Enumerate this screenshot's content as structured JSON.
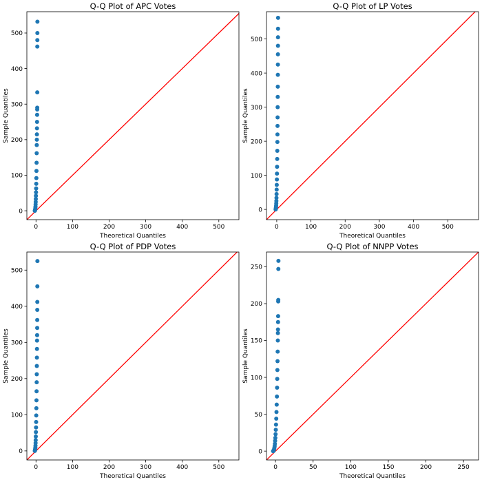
{
  "chart_data": [
    {
      "type": "scatter",
      "title": "Q-Q Plot of APC Votes",
      "xlabel": "Theoretical Quantiles",
      "ylabel": "Sample Quantiles",
      "xlim": [
        -25,
        555
      ],
      "ylim": [
        -25,
        560
      ],
      "xticks": [
        0,
        100,
        200,
        300,
        400,
        500
      ],
      "yticks": [
        0,
        100,
        200,
        300,
        400,
        500
      ],
      "reference_line": "y = x",
      "marker_color": "#1f77b4",
      "line_color": "#ff0000",
      "series": [
        {
          "points": [
            [
              -3.2,
              0
            ],
            [
              -2.9,
              1
            ],
            [
              -2.6,
              2
            ],
            [
              -2.3,
              3
            ],
            [
              -2.0,
              5
            ],
            [
              -1.7,
              8
            ],
            [
              -1.4,
              12
            ],
            [
              -1.1,
              18
            ],
            [
              -0.8,
              25
            ],
            [
              -0.5,
              33
            ],
            [
              -0.2,
              42
            ],
            [
              0.1,
              52
            ],
            [
              0.4,
              63
            ],
            [
              0.7,
              76
            ],
            [
              1.0,
              92
            ],
            [
              1.3,
              112
            ],
            [
              1.6,
              135
            ],
            [
              1.9,
              162
            ],
            [
              2.1,
              185
            ],
            [
              2.3,
              200
            ],
            [
              2.5,
              215
            ],
            [
              2.7,
              232
            ],
            [
              2.9,
              250
            ],
            [
              3.1,
              270
            ],
            [
              3.3,
              285
            ],
            [
              3.4,
              290
            ],
            [
              3.5,
              333
            ],
            [
              3.6,
              462
            ],
            [
              3.7,
              480
            ],
            [
              3.8,
              500
            ],
            [
              3.9,
              532
            ]
          ]
        }
      ]
    },
    {
      "type": "scatter",
      "title": "Q-Q Plot of LP Votes",
      "xlabel": "Theoretical Quantiles",
      "ylabel": "Sample Quantiles",
      "xlim": [
        -30,
        590
      ],
      "ylim": [
        -30,
        580
      ],
      "xticks": [
        0,
        100,
        200,
        300,
        400,
        500
      ],
      "yticks": [
        0,
        100,
        200,
        300,
        400,
        500
      ],
      "reference_line": "y = x",
      "marker_color": "#1f77b4",
      "line_color": "#ff0000",
      "series": [
        {
          "points": [
            [
              -3.2,
              0
            ],
            [
              -2.9,
              1
            ],
            [
              -2.6,
              3
            ],
            [
              -2.3,
              5
            ],
            [
              -2.0,
              8
            ],
            [
              -1.7,
              12
            ],
            [
              -1.4,
              18
            ],
            [
              -1.1,
              25
            ],
            [
              -0.8,
              34
            ],
            [
              -0.5,
              45
            ],
            [
              -0.2,
              58
            ],
            [
              0.1,
              72
            ],
            [
              0.4,
              88
            ],
            [
              0.7,
              105
            ],
            [
              1.0,
              125
            ],
            [
              1.3,
              148
            ],
            [
              1.6,
              172
            ],
            [
              1.9,
              198
            ],
            [
              2.1,
              220
            ],
            [
              2.3,
              245
            ],
            [
              2.5,
              270
            ],
            [
              2.7,
              300
            ],
            [
              2.9,
              330
            ],
            [
              3.1,
              360
            ],
            [
              3.3,
              395
            ],
            [
              3.4,
              425
            ],
            [
              3.5,
              455
            ],
            [
              3.6,
              480
            ],
            [
              3.7,
              505
            ],
            [
              3.8,
              530
            ],
            [
              3.9,
              562
            ]
          ]
        }
      ]
    },
    {
      "type": "scatter",
      "title": "Q-Q Plot of PDP Votes",
      "xlabel": "Theoretical Quantiles",
      "ylabel": "Sample Quantiles",
      "xlim": [
        -25,
        555
      ],
      "ylim": [
        -25,
        550
      ],
      "xticks": [
        0,
        100,
        200,
        300,
        400,
        500
      ],
      "yticks": [
        0,
        100,
        200,
        300,
        400,
        500
      ],
      "reference_line": "y = x",
      "marker_color": "#1f77b4",
      "line_color": "#ff0000",
      "series": [
        {
          "points": [
            [
              -3.2,
              0
            ],
            [
              -2.9,
              1
            ],
            [
              -2.6,
              2
            ],
            [
              -2.3,
              4
            ],
            [
              -2.0,
              6
            ],
            [
              -1.7,
              10
            ],
            [
              -1.4,
              15
            ],
            [
              -1.1,
              22
            ],
            [
              -0.8,
              30
            ],
            [
              -0.5,
              40
            ],
            [
              -0.2,
              52
            ],
            [
              0.1,
              65
            ],
            [
              0.4,
              80
            ],
            [
              0.7,
              98
            ],
            [
              1.0,
              118
            ],
            [
              1.3,
              140
            ],
            [
              1.6,
              165
            ],
            [
              1.9,
              190
            ],
            [
              2.1,
              212
            ],
            [
              2.3,
              235
            ],
            [
              2.5,
              258
            ],
            [
              2.7,
              282
            ],
            [
              2.9,
              305
            ],
            [
              3.1,
              320
            ],
            [
              3.3,
              340
            ],
            [
              3.4,
              362
            ],
            [
              3.5,
              390
            ],
            [
              3.6,
              412
            ],
            [
              3.7,
              455
            ],
            [
              3.9,
              525
            ]
          ]
        }
      ]
    },
    {
      "type": "scatter",
      "title": "Q-Q Plot of NNPP Votes",
      "xlabel": "Theoretical Quantiles",
      "ylabel": "Sample Quantiles",
      "xlim": [
        -12,
        270
      ],
      "ylim": [
        -12,
        270
      ],
      "xticks": [
        0,
        50,
        100,
        150,
        200,
        250
      ],
      "yticks": [
        0,
        50,
        100,
        150,
        200,
        250
      ],
      "reference_line": "y = x",
      "marker_color": "#1f77b4",
      "line_color": "#ff0000",
      "series": [
        {
          "points": [
            [
              -3.2,
              0
            ],
            [
              -2.9,
              0
            ],
            [
              -2.6,
              1
            ],
            [
              -2.3,
              1
            ],
            [
              -2.0,
              2
            ],
            [
              -1.7,
              3
            ],
            [
              -1.4,
              5
            ],
            [
              -1.1,
              7
            ],
            [
              -0.8,
              10
            ],
            [
              -0.5,
              14
            ],
            [
              -0.2,
              18
            ],
            [
              0.1,
              23
            ],
            [
              0.4,
              29
            ],
            [
              0.7,
              36
            ],
            [
              1.0,
              44
            ],
            [
              1.3,
              53
            ],
            [
              1.6,
              63
            ],
            [
              1.9,
              74
            ],
            [
              2.1,
              86
            ],
            [
              2.3,
              98
            ],
            [
              2.5,
              110
            ],
            [
              2.7,
              122
            ],
            [
              2.9,
              135
            ],
            [
              3.1,
              150
            ],
            [
              3.2,
              160
            ],
            [
              3.3,
              165
            ],
            [
              3.4,
              175
            ],
            [
              3.5,
              183
            ],
            [
              3.6,
              203
            ],
            [
              3.7,
              205
            ],
            [
              3.8,
              247
            ],
            [
              3.9,
              258
            ]
          ]
        }
      ]
    }
  ]
}
